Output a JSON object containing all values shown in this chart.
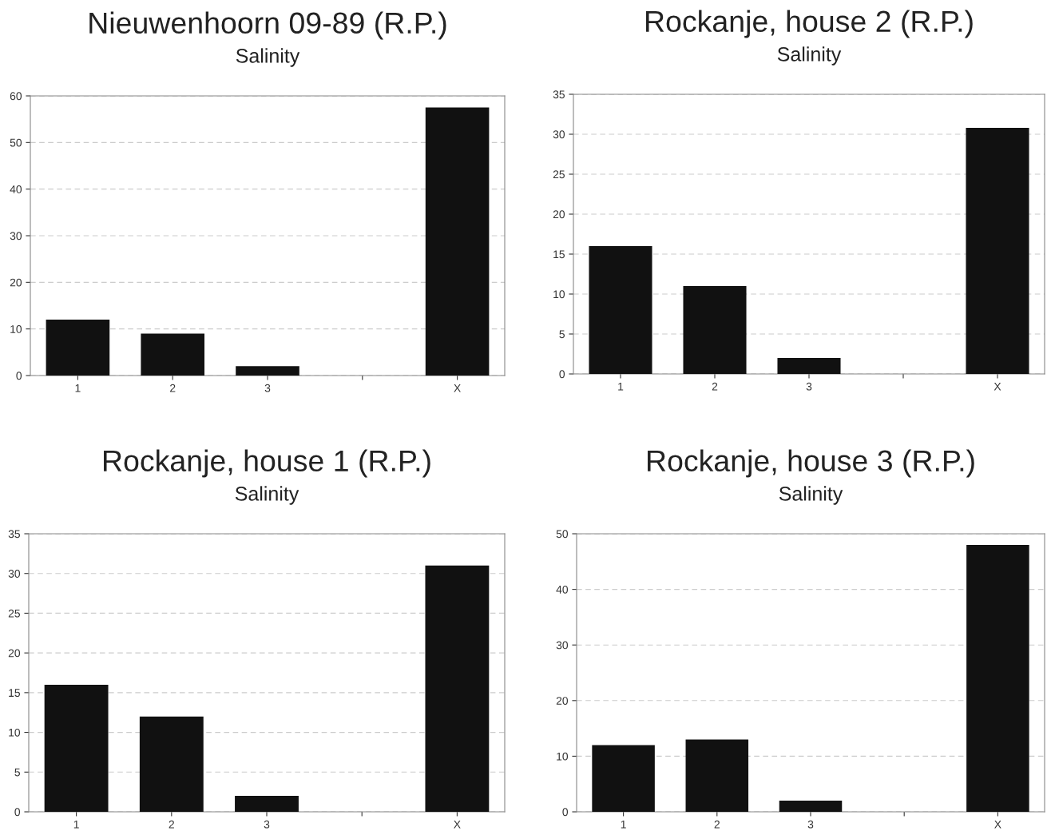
{
  "chart_data": [
    {
      "type": "bar",
      "title": "Nieuwenhoorn 09-89 (R.P.)",
      "subtitle": "Salinity",
      "categories": [
        "1",
        "2",
        "3",
        null,
        "X"
      ],
      "values": [
        12,
        9,
        2,
        null,
        57.5
      ],
      "color": "#111111",
      "ylim": [
        0,
        60
      ],
      "yticks": [
        0,
        10,
        20,
        30,
        40,
        50,
        60
      ],
      "grid": "y"
    },
    {
      "type": "bar",
      "title": "Rockanje, house 2 (R.P.)",
      "subtitle": "Salinity",
      "categories": [
        "1",
        "2",
        "3",
        null,
        "X"
      ],
      "values": [
        16,
        11,
        2,
        null,
        30.8
      ],
      "color": "#111111",
      "ylim": [
        0,
        35
      ],
      "yticks": [
        0,
        5,
        10,
        15,
        20,
        25,
        30,
        35
      ],
      "grid": "y"
    },
    {
      "type": "bar",
      "title": "Rockanje, house 1 (R.P.)",
      "subtitle": "Salinity",
      "categories": [
        "1",
        "2",
        "3",
        null,
        "X"
      ],
      "values": [
        16,
        12,
        2,
        null,
        31
      ],
      "color": "#111111",
      "ylim": [
        0,
        35
      ],
      "yticks": [
        0,
        5,
        10,
        15,
        20,
        25,
        30,
        35
      ],
      "grid": "y"
    },
    {
      "type": "bar",
      "title": "Rockanje, house 3 (R.P.)",
      "subtitle": "Salinity",
      "categories": [
        "1",
        "2",
        "3",
        null,
        "X"
      ],
      "values": [
        12,
        13,
        2,
        null,
        48
      ],
      "color": "#111111",
      "ylim": [
        0,
        50
      ],
      "yticks": [
        0,
        10,
        20,
        30,
        40,
        50
      ],
      "grid": "y"
    }
  ]
}
